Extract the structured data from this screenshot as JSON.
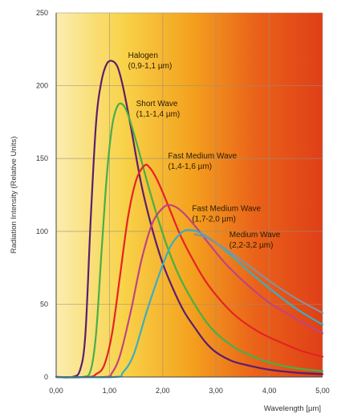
{
  "chart_data": {
    "type": "line",
    "xlabel": "Wavelength [µm]",
    "ylabel": "Radiation Intensity (Relative Units)",
    "xlim": [
      0,
      5
    ],
    "ylim": [
      0,
      250
    ],
    "grid": true,
    "x_ticks": [
      "0,00",
      "1,00",
      "2,00",
      "3,00",
      "4,00",
      "5,00"
    ],
    "y_ticks": [
      "0",
      "50",
      "100",
      "150",
      "200",
      "250"
    ],
    "y_tick_values": [
      0,
      50,
      100,
      150,
      200,
      250
    ],
    "x_tick_values": [
      0,
      1,
      2,
      3,
      4,
      5
    ],
    "background_gradient": [
      "#fbedb0",
      "#f8d34a",
      "#f4a31f",
      "#ea6219",
      "#df3f18"
    ],
    "annotations": [
      {
        "lines": [
          "Halogen",
          "(0,9-1,1 µm)"
        ],
        "x": 1.35,
        "y": 219
      },
      {
        "lines": [
          "Short Wave",
          "(1,1-1,4 µm)"
        ],
        "x": 1.5,
        "y": 186
      },
      {
        "lines": [
          "Fast Medium Wave",
          "(1,4-1,6 µm)"
        ],
        "x": 2.1,
        "y": 150
      },
      {
        "lines": [
          "Fast Medium Wave",
          "(1,7-2,0 µm)"
        ],
        "x": 2.55,
        "y": 114
      },
      {
        "lines": [
          "Medium Wave",
          "(2,2-3,2 µm)"
        ],
        "x": 3.25,
        "y": 96
      }
    ],
    "series": [
      {
        "color": "#5b1e6e",
        "values": [
          [
            0,
            0
          ],
          [
            0.3,
            0
          ],
          [
            0.45,
            5
          ],
          [
            0.55,
            30
          ],
          [
            0.65,
            110
          ],
          [
            0.75,
            175
          ],
          [
            0.85,
            203
          ],
          [
            0.95,
            215
          ],
          [
            1.05,
            217
          ],
          [
            1.15,
            213
          ],
          [
            1.25,
            200
          ],
          [
            1.4,
            172
          ],
          [
            1.6,
            132
          ],
          [
            1.8,
            102
          ],
          [
            2.0,
            78
          ],
          [
            2.2,
            60
          ],
          [
            2.4,
            45
          ],
          [
            2.6,
            34
          ],
          [
            2.8,
            24
          ],
          [
            3.0,
            17
          ],
          [
            3.3,
            11
          ],
          [
            3.6,
            8
          ],
          [
            4.0,
            5
          ],
          [
            4.5,
            3
          ],
          [
            5.0,
            2
          ]
        ]
      },
      {
        "color": "#46b047",
        "values": [
          [
            0,
            0
          ],
          [
            0.5,
            0
          ],
          [
            0.65,
            5
          ],
          [
            0.75,
            30
          ],
          [
            0.85,
            85
          ],
          [
            0.95,
            138
          ],
          [
            1.05,
            172
          ],
          [
            1.15,
            186
          ],
          [
            1.25,
            187
          ],
          [
            1.35,
            180
          ],
          [
            1.5,
            162
          ],
          [
            1.7,
            135
          ],
          [
            1.9,
            110
          ],
          [
            2.1,
            88
          ],
          [
            2.3,
            70
          ],
          [
            2.5,
            56
          ],
          [
            2.7,
            44
          ],
          [
            2.9,
            34
          ],
          [
            3.1,
            27
          ],
          [
            3.4,
            19
          ],
          [
            3.7,
            14
          ],
          [
            4.0,
            10
          ],
          [
            4.5,
            6
          ],
          [
            5.0,
            4
          ]
        ]
      },
      {
        "color": "#e52323",
        "values": [
          [
            0,
            0
          ],
          [
            0.6,
            0
          ],
          [
            0.75,
            2
          ],
          [
            0.9,
            8
          ],
          [
            1.05,
            30
          ],
          [
            1.2,
            70
          ],
          [
            1.35,
            110
          ],
          [
            1.5,
            135
          ],
          [
            1.65,
            145
          ],
          [
            1.75,
            144
          ],
          [
            1.9,
            135
          ],
          [
            2.1,
            118
          ],
          [
            2.3,
            100
          ],
          [
            2.5,
            85
          ],
          [
            2.8,
            66
          ],
          [
            3.1,
            52
          ],
          [
            3.4,
            41
          ],
          [
            3.8,
            31
          ],
          [
            4.2,
            24
          ],
          [
            4.6,
            18
          ],
          [
            5.0,
            14
          ]
        ]
      },
      {
        "color": "#c0447f",
        "values": [
          [
            0,
            0
          ],
          [
            0.9,
            0
          ],
          [
            1.05,
            3
          ],
          [
            1.2,
            15
          ],
          [
            1.4,
            45
          ],
          [
            1.6,
            80
          ],
          [
            1.8,
            105
          ],
          [
            2.0,
            116
          ],
          [
            2.15,
            118
          ],
          [
            2.35,
            114
          ],
          [
            2.6,
            104
          ],
          [
            2.9,
            90
          ],
          [
            3.2,
            77
          ],
          [
            3.6,
            63
          ],
          [
            4.0,
            51
          ],
          [
            4.5,
            40
          ],
          [
            5.0,
            30
          ]
        ]
      },
      {
        "color": "#3aaec0",
        "values": [
          [
            0,
            0
          ],
          [
            1.1,
            0
          ],
          [
            1.25,
            3
          ],
          [
            1.45,
            15
          ],
          [
            1.7,
            45
          ],
          [
            1.95,
            72
          ],
          [
            2.15,
            90
          ],
          [
            2.35,
            99
          ],
          [
            2.5,
            101
          ],
          [
            2.7,
            99
          ],
          [
            3.0,
            92
          ],
          [
            3.3,
            83
          ],
          [
            3.6,
            73
          ],
          [
            4.0,
            61
          ],
          [
            4.5,
            47
          ],
          [
            5.0,
            36
          ]
        ]
      },
      {
        "color": "#8a8f99",
        "values": [
          [
            2.6,
            98
          ],
          [
            2.8,
            96
          ],
          [
            3.0,
            92
          ],
          [
            3.3,
            85
          ],
          [
            3.6,
            77
          ],
          [
            4.0,
            66
          ],
          [
            4.5,
            54
          ],
          [
            5.0,
            44
          ]
        ]
      }
    ]
  }
}
